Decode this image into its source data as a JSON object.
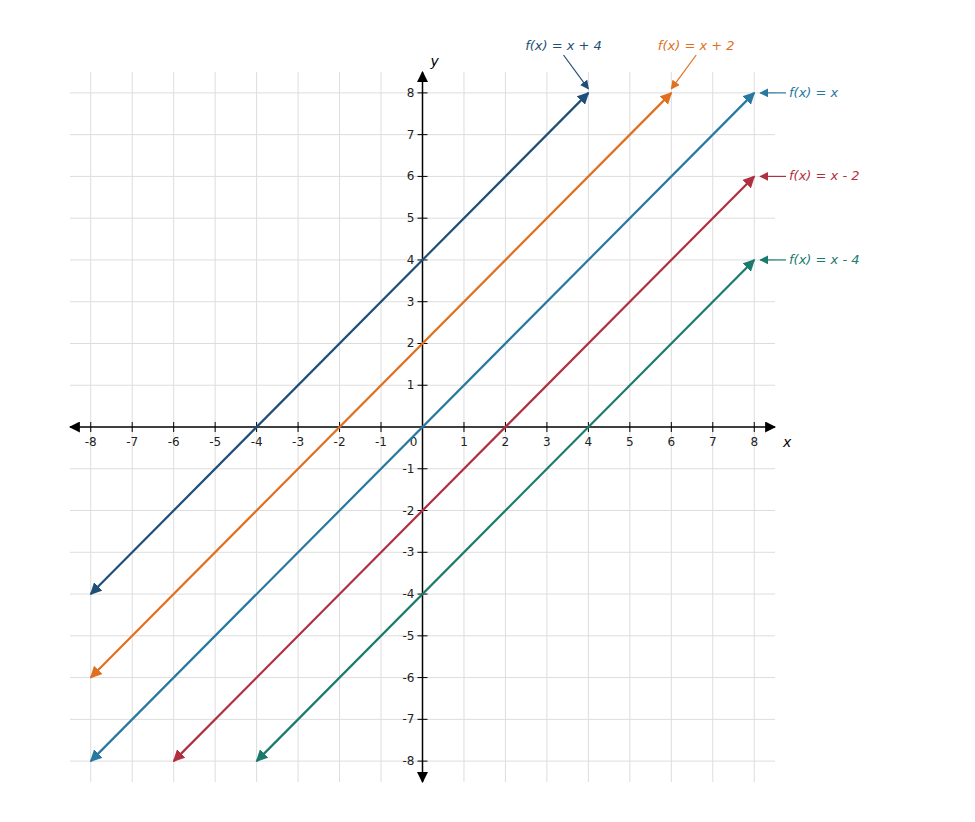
{
  "chart_data": {
    "type": "line",
    "xlabel": "x",
    "ylabel": "y",
    "xlim": [
      -8.5,
      8.5
    ],
    "ylim": [
      -8.5,
      8.5
    ],
    "xticks": [
      -8,
      -7,
      -6,
      -5,
      -4,
      -3,
      -2,
      -1,
      0,
      1,
      2,
      3,
      4,
      5,
      6,
      7,
      8
    ],
    "yticks": [
      -8,
      -7,
      -6,
      -5,
      -4,
      -3,
      -2,
      -1,
      1,
      2,
      3,
      4,
      5,
      6,
      7,
      8
    ],
    "grid": true,
    "series": [
      {
        "name": "f(x) = x + 4",
        "color": "#1f4e79",
        "x": [
          -8,
          4
        ],
        "values": [
          -4,
          8
        ]
      },
      {
        "name": "f(x) = x + 2",
        "color": "#e07020",
        "x": [
          -8,
          6
        ],
        "values": [
          -6,
          8
        ]
      },
      {
        "name": "f(x) = x",
        "color": "#2878a0",
        "x": [
          -8,
          8
        ],
        "values": [
          -8,
          8
        ]
      },
      {
        "name": "f(x) = x - 2",
        "color": "#b03040",
        "x": [
          -6,
          8
        ],
        "values": [
          -8,
          6
        ]
      },
      {
        "name": "f(x) = x - 4",
        "color": "#1a7a6e",
        "x": [
          -4,
          8
        ],
        "values": [
          -8,
          4
        ]
      }
    ]
  }
}
